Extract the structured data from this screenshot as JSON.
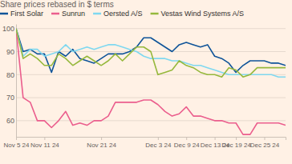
{
  "chart_data": {
    "type": "line",
    "subtitle": "Share prices rebased in $ terms",
    "categories": [
      "Nov 5 24",
      null,
      null,
      null,
      "Nov 11 24",
      null,
      null,
      null,
      null,
      null,
      null,
      null,
      "Nov 21 24",
      null,
      null,
      null,
      null,
      null,
      null,
      null,
      "Dec 3 24",
      null,
      null,
      null,
      "Dec 9 24",
      null,
      null,
      null,
      "Dec 13 24",
      null,
      null,
      "Dec 19 24",
      null,
      null,
      null,
      "Dec 25 24",
      null,
      null,
      null
    ],
    "series": [
      {
        "name": "First Solar",
        "color": "#0f5499",
        "values": [
          100,
          90,
          91,
          89,
          89,
          81,
          90,
          88,
          91,
          87,
          86,
          85,
          87,
          89,
          89,
          89,
          90,
          92,
          96,
          96,
          94,
          92,
          90,
          93,
          94,
          93,
          92,
          93,
          88,
          87,
          85,
          81,
          84,
          86,
          86,
          86,
          85,
          85,
          84
        ]
      },
      {
        "name": "Sunrun",
        "color": "#eb5e8d",
        "values": [
          100,
          70,
          68,
          60,
          60,
          57,
          60,
          64,
          58,
          59,
          58,
          60,
          60,
          62,
          68,
          68,
          68,
          68,
          69,
          69,
          67,
          64,
          62,
          63,
          66,
          62,
          62,
          61,
          60,
          60,
          59,
          59,
          54,
          54,
          59,
          59,
          59,
          59,
          58
        ]
      },
      {
        "name": "Oersted A/S",
        "color": "#7fd8f0",
        "values": [
          100,
          88,
          91,
          91,
          88,
          89,
          90,
          93,
          90,
          91,
          92,
          91,
          92,
          93,
          93,
          92,
          91,
          90,
          88,
          87,
          87,
          87,
          86,
          86,
          85,
          84,
          84,
          83,
          82,
          81,
          80,
          80,
          80,
          80,
          80,
          80,
          80,
          79,
          79
        ]
      },
      {
        "name": "Vestas Wind Systems A/S",
        "color": "#96b83c",
        "values": [
          100,
          87,
          89,
          87,
          84,
          84,
          89,
          87,
          84,
          86,
          88,
          86,
          84,
          86,
          89,
          86,
          89,
          92,
          92,
          90,
          80,
          81,
          82,
          86,
          84,
          83,
          81,
          80,
          80,
          79,
          83,
          82,
          79,
          80,
          83,
          83,
          83,
          83,
          83
        ]
      }
    ],
    "ylim": [
      53,
      102
    ],
    "yticks": [
      60,
      70,
      80,
      90,
      100
    ],
    "grid": true,
    "legend": "top-left"
  }
}
